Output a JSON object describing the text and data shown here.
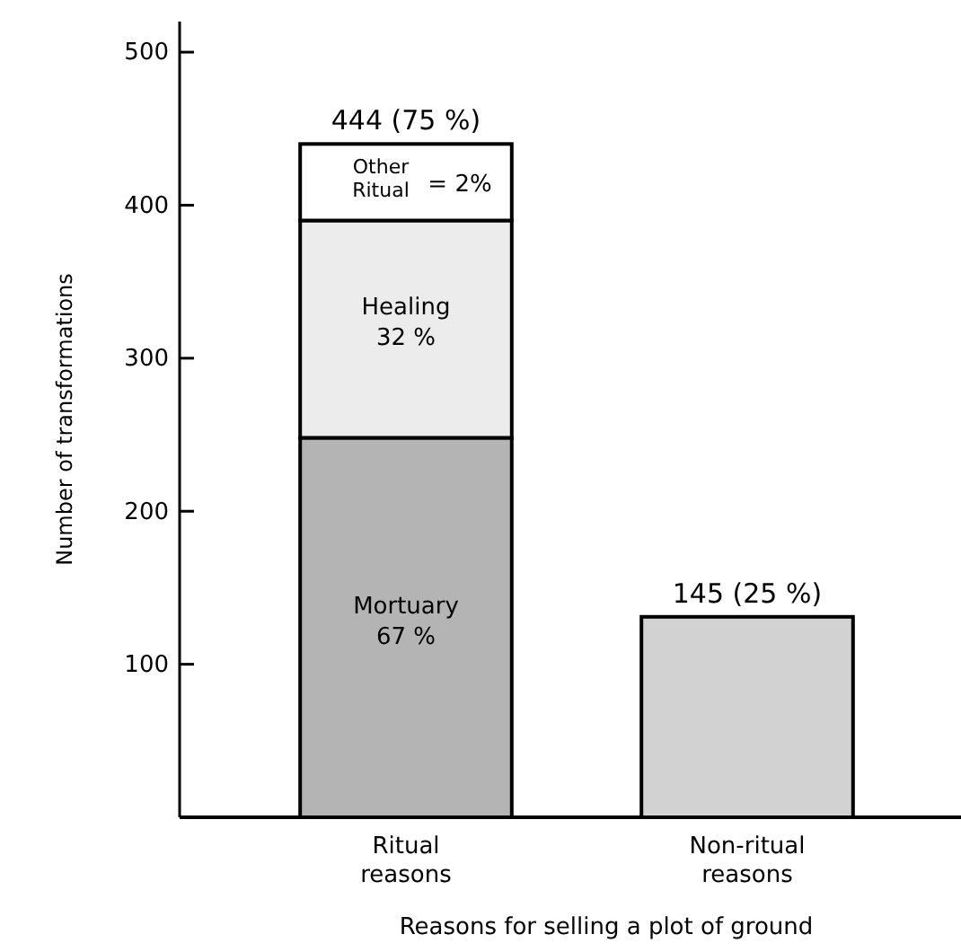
{
  "chart_data": {
    "type": "bar",
    "stacked": true,
    "xlabel": "Reasons for selling a plot of ground",
    "ylabel": "Number of transformations",
    "categories": [
      "Ritual\nreasons",
      "Non-ritual\nreasons"
    ],
    "series": [
      {
        "name": "Mortuary\n67 %",
        "color": "#b4b4b4",
        "values": [
          248,
          null
        ]
      },
      {
        "name": "Healing\n32 %",
        "color": "#ececec",
        "values": [
          142,
          null
        ]
      },
      {
        "name": "Other\nRitual\n= 2%",
        "color": "#ffffff",
        "values": [
          50,
          null
        ]
      },
      {
        "color": "#d2d2d2",
        "values": [
          null,
          131
        ]
      }
    ],
    "totals": [
      "444 (75 %)",
      "145 (25 %)"
    ],
    "ylim": [
      0,
      520
    ],
    "yticks": [
      100,
      200,
      300,
      400,
      500
    ]
  }
}
